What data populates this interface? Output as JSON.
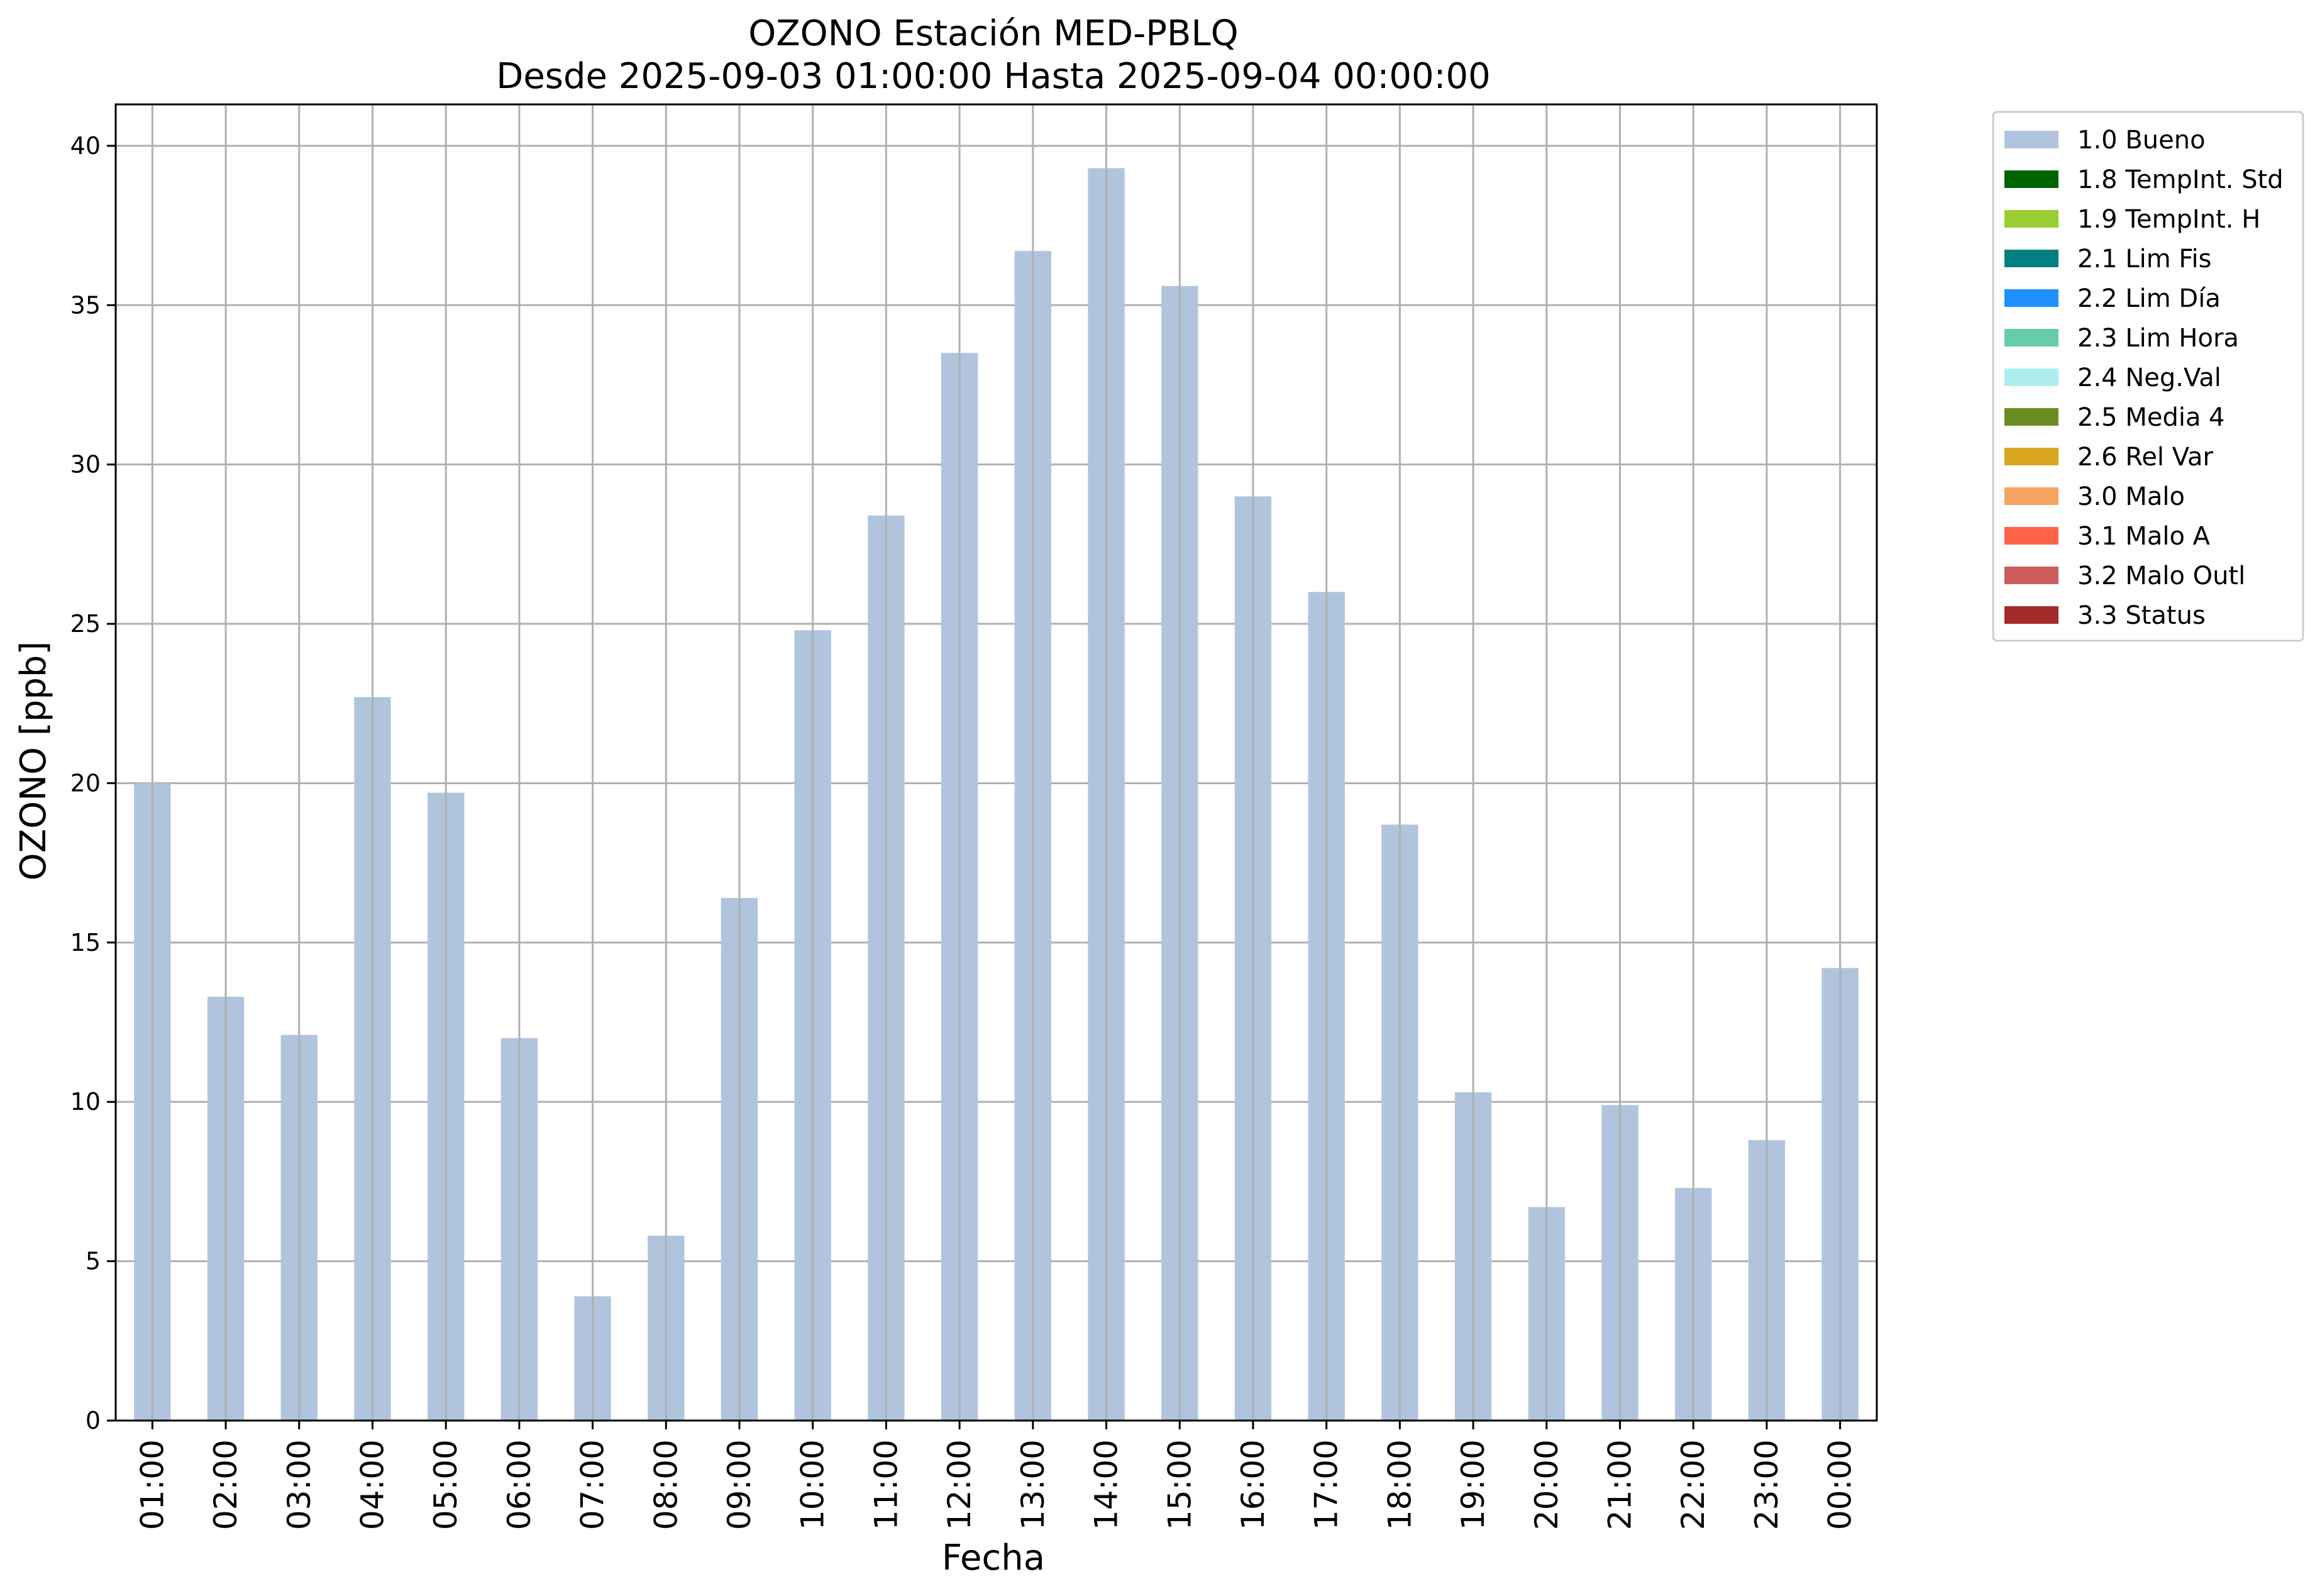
{
  "chart_data": {
    "type": "bar",
    "title_lines": [
      "OZONO Estación MED-PBLQ",
      "Desde 2025-09-03 01:00:00 Hasta 2025-09-04 00:00:00"
    ],
    "xlabel": "Fecha",
    "ylabel": "OZONO [ppb]",
    "ylim": [
      0,
      41.3
    ],
    "yticks": [
      0,
      5,
      10,
      15,
      20,
      25,
      30,
      35,
      40
    ],
    "grid": true,
    "legend_position": "outside-top-right",
    "categories": [
      "01:00",
      "02:00",
      "03:00",
      "04:00",
      "05:00",
      "06:00",
      "07:00",
      "08:00",
      "09:00",
      "10:00",
      "11:00",
      "12:00",
      "13:00",
      "14:00",
      "15:00",
      "16:00",
      "17:00",
      "18:00",
      "19:00",
      "20:00",
      "21:00",
      "22:00",
      "23:00",
      "00:00"
    ],
    "series": [
      {
        "name": "1.0 Bueno",
        "color": "#b0c4de",
        "values": [
          20.0,
          13.3,
          12.1,
          22.7,
          19.7,
          12.0,
          3.9,
          5.8,
          16.4,
          24.8,
          28.4,
          33.5,
          36.7,
          39.3,
          35.6,
          29.0,
          26.0,
          18.7,
          10.3,
          6.7,
          9.9,
          7.3,
          8.8,
          14.2
        ]
      }
    ],
    "legend": [
      {
        "label": "1.0 Bueno",
        "color": "#b0c4de"
      },
      {
        "label": "1.8 TempInt. Std",
        "color": "#006400"
      },
      {
        "label": "1.9 TempInt. H",
        "color": "#9acd32"
      },
      {
        "label": "2.1 Lim Fis",
        "color": "#008080"
      },
      {
        "label": "2.2 Lim Día",
        "color": "#1e90ff"
      },
      {
        "label": "2.3 Lim Hora",
        "color": "#66cdaa"
      },
      {
        "label": "2.4 Neg.Val",
        "color": "#afeeee"
      },
      {
        "label": "2.5 Media 4",
        "color": "#6b8e23"
      },
      {
        "label": "2.6 Rel Var",
        "color": "#daa520"
      },
      {
        "label": "3.0 Malo",
        "color": "#f4a460"
      },
      {
        "label": "3.1 Malo A",
        "color": "#ff6347"
      },
      {
        "label": "3.2 Malo Outl",
        "color": "#cd5c5c"
      },
      {
        "label": "3.3 Status",
        "color": "#a52a2a"
      }
    ]
  }
}
